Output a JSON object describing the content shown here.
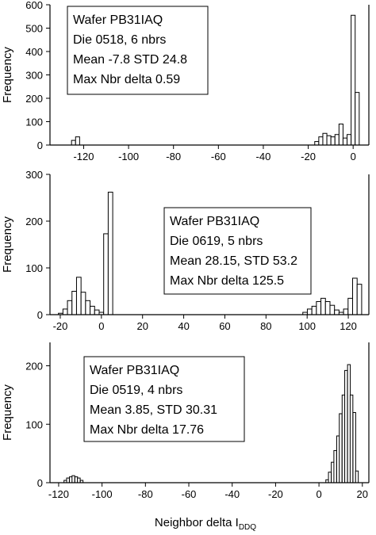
{
  "chart_data": [
    {
      "type": "bar",
      "ylabel": "Frequency",
      "xlim": [
        -135,
        7
      ],
      "ylim": [
        0,
        600
      ],
      "xticks": [
        -120,
        -100,
        -80,
        -60,
        -40,
        -20,
        0
      ],
      "yticks": [
        0,
        100,
        200,
        300,
        400,
        500,
        600
      ],
      "bin_width": 1.8,
      "bins": [
        {
          "x": -124.5,
          "y": 20
        },
        {
          "x": -122.7,
          "y": 35
        },
        {
          "x": -16.2,
          "y": 15
        },
        {
          "x": -14.4,
          "y": 35
        },
        {
          "x": -12.6,
          "y": 50
        },
        {
          "x": -10.8,
          "y": 40
        },
        {
          "x": -9.0,
          "y": 35
        },
        {
          "x": -7.2,
          "y": 45
        },
        {
          "x": -5.4,
          "y": 90
        },
        {
          "x": -3.6,
          "y": 30
        },
        {
          "x": -1.8,
          "y": 45
        },
        {
          "x": 0.0,
          "y": 555
        },
        {
          "x": 1.8,
          "y": 225
        }
      ],
      "annotation": [
        "Wafer PB31IAQ",
        "Die 0518, 6 nbrs",
        "Mean -7.8 STD 24.8",
        "Max Nbr delta 0.59"
      ]
    },
    {
      "type": "bar",
      "ylabel": "Frequency",
      "xlim": [
        -25,
        130
      ],
      "ylim": [
        0,
        300
      ],
      "xticks": [
        -20,
        0,
        20,
        40,
        60,
        80,
        100,
        120
      ],
      "yticks": [
        0,
        100,
        200,
        300
      ],
      "bin_width": 2.2,
      "bins": [
        {
          "x": -19.8,
          "y": 3
        },
        {
          "x": -17.6,
          "y": 12
        },
        {
          "x": -15.4,
          "y": 30
        },
        {
          "x": -13.2,
          "y": 50
        },
        {
          "x": -11.0,
          "y": 80
        },
        {
          "x": -8.8,
          "y": 48
        },
        {
          "x": -6.6,
          "y": 30
        },
        {
          "x": -4.4,
          "y": 18
        },
        {
          "x": -2.2,
          "y": 10
        },
        {
          "x": 0.0,
          "y": 5
        },
        {
          "x": 2.2,
          "y": 173
        },
        {
          "x": 4.4,
          "y": 262
        },
        {
          "x": 99.0,
          "y": 5
        },
        {
          "x": 101.2,
          "y": 12
        },
        {
          "x": 103.4,
          "y": 18
        },
        {
          "x": 105.6,
          "y": 28
        },
        {
          "x": 107.8,
          "y": 35
        },
        {
          "x": 110.0,
          "y": 28
        },
        {
          "x": 112.2,
          "y": 20
        },
        {
          "x": 114.4,
          "y": 10
        },
        {
          "x": 116.6,
          "y": 5
        },
        {
          "x": 118.8,
          "y": 12
        },
        {
          "x": 121.0,
          "y": 35
        },
        {
          "x": 123.2,
          "y": 78
        },
        {
          "x": 125.4,
          "y": 65
        }
      ],
      "annotation": [
        "Wafer PB31IAQ",
        "Die 0619, 5 nbrs",
        "Mean 28.15, STD 53.2",
        "Max Nbr delta 125.5"
      ]
    },
    {
      "type": "bar",
      "ylabel": "Frequency",
      "xlabel_main": "Neighbor delta I",
      "xlabel_sub": "DDQ",
      "xlim": [
        -124,
        23
      ],
      "ylim": [
        0,
        240
      ],
      "xticks": [
        -120,
        -100,
        -80,
        -60,
        -40,
        -20,
        0,
        20
      ],
      "yticks": [
        0,
        100,
        200
      ],
      "bin_width": 1.25,
      "bins": [
        {
          "x": -116.9,
          "y": 4
        },
        {
          "x": -115.7,
          "y": 8
        },
        {
          "x": -114.4,
          "y": 10
        },
        {
          "x": -113.2,
          "y": 12
        },
        {
          "x": -111.9,
          "y": 10
        },
        {
          "x": -110.7,
          "y": 8
        },
        {
          "x": -109.4,
          "y": 4
        },
        {
          "x": 3.8,
          "y": 5
        },
        {
          "x": 5.0,
          "y": 18
        },
        {
          "x": 6.3,
          "y": 35
        },
        {
          "x": 7.5,
          "y": 55
        },
        {
          "x": 8.8,
          "y": 80
        },
        {
          "x": 10.0,
          "y": 118
        },
        {
          "x": 11.3,
          "y": 150
        },
        {
          "x": 12.5,
          "y": 192
        },
        {
          "x": 13.8,
          "y": 202
        },
        {
          "x": 15.0,
          "y": 150
        },
        {
          "x": 16.3,
          "y": 120
        },
        {
          "x": 17.5,
          "y": 20
        }
      ],
      "annotation": [
        "Wafer PB31IAQ",
        "Die 0519, 4 nbrs",
        "Mean 3.85, STD 30.31",
        "Max Nbr delta 17.76"
      ]
    }
  ]
}
